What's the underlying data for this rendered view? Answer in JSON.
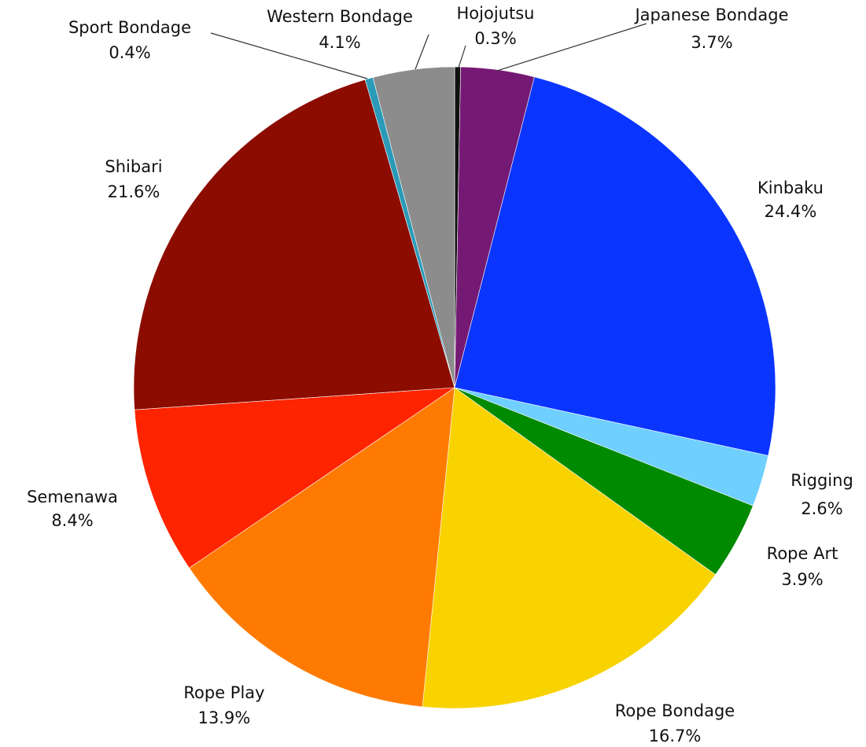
{
  "chart_data": {
    "type": "pie",
    "categories": [
      "Hojojutsu",
      "Japanese Bondage",
      "Kinbaku",
      "Rigging",
      "Rope Art",
      "Rope Bondage",
      "Rope Play",
      "Semenawa",
      "Shibari",
      "Sport Bondage",
      "Western Bondage"
    ],
    "values": [
      0.3,
      3.7,
      24.4,
      2.6,
      3.9,
      16.7,
      13.9,
      8.4,
      21.6,
      0.4,
      4.1
    ],
    "value_labels": [
      "0.3%",
      "3.7%",
      "24.4%",
      "2.6%",
      "3.9%",
      "16.7%",
      "13.9%",
      "8.4%",
      "21.6%",
      "0.4%",
      "4.1%"
    ],
    "colors": [
      "#111111",
      "#751a74",
      "#0a35ff",
      "#6fcfff",
      "#008a00",
      "#f8d300",
      "#ff7a00",
      "#ff2400",
      "#8c0c00",
      "#2a9ab8",
      "#8c8c8c"
    ]
  }
}
